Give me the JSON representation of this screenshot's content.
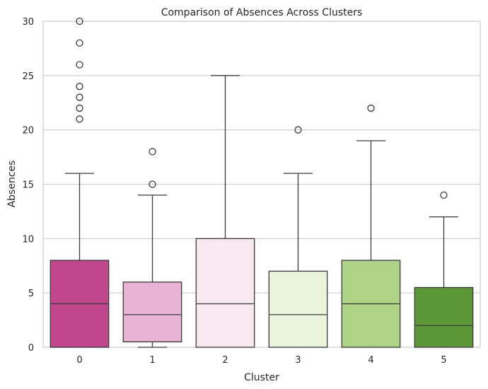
{
  "chart_data": {
    "type": "box",
    "title": "Comparison of Absences Across Clusters",
    "xlabel": "Cluster",
    "ylabel": "Absences",
    "ylim": [
      0,
      30
    ],
    "yticks": [
      0,
      5,
      10,
      15,
      20,
      25,
      30
    ],
    "grid": "y",
    "categories": [
      "0",
      "1",
      "2",
      "3",
      "4",
      "5"
    ],
    "boxes": [
      {
        "category": "0",
        "whisker_low": 0,
        "q1": 0,
        "median": 4,
        "q3": 8,
        "whisker_high": 16,
        "outliers": [
          21,
          22,
          23,
          24,
          26,
          28,
          30
        ],
        "color": "#c0478c"
      },
      {
        "category": "1",
        "whisker_low": 0,
        "q1": 0.5,
        "median": 3,
        "q3": 6,
        "whisker_high": 14,
        "outliers": [
          15,
          18
        ],
        "color": "#e9b4d5"
      },
      {
        "category": "2",
        "whisker_low": 0,
        "q1": 0,
        "median": 4,
        "q3": 10,
        "whisker_high": 25,
        "outliers": [],
        "color": "#f8e9f1"
      },
      {
        "category": "3",
        "whisker_low": 0,
        "q1": 0,
        "median": 3,
        "q3": 7,
        "whisker_high": 16,
        "outliers": [
          20
        ],
        "color": "#eaf3dc"
      },
      {
        "category": "4",
        "whisker_low": 0,
        "q1": 0,
        "median": 4,
        "q3": 8,
        "whisker_high": 19,
        "outliers": [
          22
        ],
        "color": "#afd386"
      },
      {
        "category": "5",
        "whisker_low": 0,
        "q1": 0,
        "median": 2,
        "q3": 5.5,
        "whisker_high": 12,
        "outliers": [
          14
        ],
        "color": "#5e963a"
      }
    ]
  }
}
